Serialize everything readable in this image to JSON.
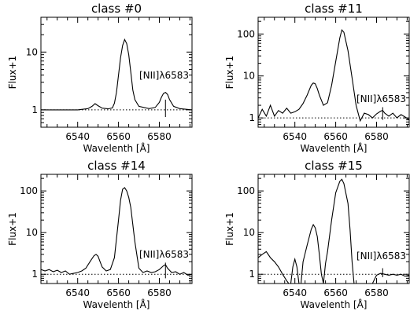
{
  "figure": {
    "panel_count": 4,
    "shared": {
      "xlabel": "Wavelenth [Å]",
      "ylabel": "Flux+1",
      "xlim": [
        6522,
        6596
      ],
      "x_ticks": [
        6540,
        6560,
        6580
      ],
      "y_scale": "log",
      "annotation": "[NII]λ6583",
      "marker_x": 6583,
      "baseline_y": 1,
      "colors": {
        "line": "#000000",
        "baseline": "#000000",
        "background": "#ffffff"
      }
    }
  },
  "chart_data": [
    {
      "type": "line",
      "title": "class #0",
      "xlabel": "Wavelenth [Å]",
      "ylabel": "Flux+1",
      "xlim": [
        6522,
        6596
      ],
      "ylim": [
        0.5,
        40
      ],
      "y_scale": "log",
      "y_ticks": [
        1,
        10
      ],
      "y_tick_labels": [
        "1",
        "10"
      ],
      "x_ticks": [
        6540,
        6560,
        6580
      ],
      "annotation": "[NII]λ6583",
      "marker_x": 6583,
      "baseline_y": 1,
      "marker_range": [
        0.75,
        1.5
      ],
      "annotation_y": 3.5,
      "x": [
        6522,
        6530,
        6540,
        6545,
        6547,
        6548.5,
        6550,
        6552,
        6555,
        6557,
        6558,
        6559,
        6560,
        6561,
        6562,
        6563,
        6564,
        6565,
        6566,
        6567,
        6568,
        6570,
        6575,
        6578,
        6580,
        6581,
        6582,
        6583,
        6584,
        6585,
        6587,
        6590,
        6596
      ],
      "y": [
        1.0,
        1.0,
        1.0,
        1.05,
        1.15,
        1.28,
        1.18,
        1.07,
        1.04,
        1.08,
        1.3,
        2.0,
        4.0,
        8.0,
        13.0,
        16.5,
        14.0,
        9.0,
        4.5,
        2.2,
        1.5,
        1.15,
        1.05,
        1.1,
        1.35,
        1.65,
        1.92,
        2.0,
        1.85,
        1.5,
        1.15,
        1.05,
        1.0
      ]
    },
    {
      "type": "line",
      "title": "class #11",
      "xlabel": "Wavelenth [Å]",
      "ylabel": "Flux+1",
      "xlim": [
        6522,
        6596
      ],
      "ylim": [
        0.6,
        250
      ],
      "y_scale": "log",
      "y_ticks": [
        1,
        10,
        100
      ],
      "y_tick_labels": [
        "1",
        "10",
        "100"
      ],
      "x_ticks": [
        6540,
        6560,
        6580
      ],
      "annotation": "[NII]λ6583",
      "marker_x": 6583,
      "baseline_y": 1,
      "marker_range": [
        0.9,
        1.8
      ],
      "annotation_y": 2.4,
      "x": [
        6522,
        6524,
        6526,
        6528,
        6530,
        6532,
        6534,
        6536,
        6538,
        6540,
        6542,
        6544,
        6546,
        6548,
        6549,
        6550,
        6551,
        6552,
        6554,
        6556,
        6558,
        6560,
        6562,
        6563,
        6564,
        6566,
        6568,
        6570,
        6572,
        6574,
        6576,
        6578,
        6580,
        6582,
        6583,
        6584,
        6586,
        6588,
        6590,
        6592,
        6594,
        6596
      ],
      "y": [
        1.0,
        1.6,
        1.1,
        2.0,
        1.1,
        1.5,
        1.3,
        1.7,
        1.3,
        1.4,
        1.6,
        2.2,
        3.5,
        6.0,
        6.8,
        6.5,
        5.0,
        3.5,
        2.0,
        2.3,
        6.0,
        22.0,
        80.0,
        125.0,
        110.0,
        40.0,
        9.0,
        2.0,
        0.85,
        1.3,
        1.2,
        1.0,
        1.25,
        1.45,
        1.5,
        1.3,
        1.1,
        1.3,
        1.0,
        1.2,
        1.05,
        0.9
      ]
    },
    {
      "type": "line",
      "title": "class #14",
      "xlabel": "Wavelenth [Å]",
      "ylabel": "Flux+1",
      "xlim": [
        6522,
        6596
      ],
      "ylim": [
        0.6,
        250
      ],
      "y_scale": "log",
      "y_ticks": [
        1,
        10,
        100
      ],
      "y_tick_labels": [
        "1",
        "10",
        "100"
      ],
      "x_ticks": [
        6540,
        6560,
        6580
      ],
      "annotation": "[NII]λ6583",
      "marker_x": 6583,
      "baseline_y": 1,
      "marker_range": [
        0.8,
        1.9
      ],
      "annotation_y": 2.5,
      "x": [
        6522,
        6524,
        6526,
        6528,
        6530,
        6532,
        6534,
        6536,
        6538,
        6540,
        6542,
        6544,
        6546,
        6548,
        6549,
        6550,
        6551,
        6552,
        6554,
        6556,
        6558,
        6560,
        6561,
        6562,
        6563,
        6564,
        6565,
        6566,
        6568,
        6570,
        6572,
        6574,
        6576,
        6578,
        6580,
        6582,
        6583,
        6584,
        6586,
        6588,
        6590,
        6592,
        6594,
        6596
      ],
      "y": [
        1.3,
        1.2,
        1.3,
        1.15,
        1.25,
        1.1,
        1.2,
        1.0,
        1.05,
        1.1,
        1.2,
        1.4,
        2.0,
        2.8,
        3.0,
        2.7,
        2.0,
        1.5,
        1.2,
        1.3,
        2.5,
        20.0,
        60.0,
        110.0,
        120.0,
        100.0,
        70.0,
        40.0,
        6.0,
        1.4,
        1.1,
        1.2,
        1.1,
        1.15,
        1.3,
        1.6,
        1.7,
        1.4,
        1.1,
        1.15,
        1.0,
        1.1,
        0.95,
        1.0
      ]
    },
    {
      "type": "line",
      "title": "class #15",
      "xlabel": "Wavelenth [Å]",
      "ylabel": "Flux+1",
      "xlim": [
        6522,
        6596
      ],
      "ylim": [
        0.6,
        250
      ],
      "y_scale": "log",
      "y_ticks": [
        1,
        10,
        100
      ],
      "y_tick_labels": [
        "1",
        "10",
        "100"
      ],
      "x_ticks": [
        6540,
        6560,
        6580
      ],
      "annotation": "[NII]λ6583",
      "marker_x": 6583,
      "baseline_y": 1,
      "marker_range": [
        0.85,
        1.4
      ],
      "annotation_y": 2.3,
      "x": [
        6522,
        6524,
        6526,
        6528,
        6530,
        6532,
        6534,
        6536,
        6537,
        6538,
        6539,
        6540,
        6541,
        6542,
        6543,
        6544,
        6546,
        6548,
        6549,
        6550,
        6551,
        6552,
        6553,
        6554,
        6555,
        6556,
        6558,
        6560,
        6562,
        6563,
        6564,
        6566,
        6567,
        6568,
        6569,
        6570,
        6575,
        6578,
        6580,
        6582,
        6584,
        6586,
        6588,
        6590,
        6592,
        6594,
        6596
      ],
      "y": [
        2.5,
        3.0,
        3.5,
        2.5,
        2.0,
        1.5,
        1.0,
        0.7,
        0.6,
        0.6,
        1.5,
        2.3,
        1.5,
        0.6,
        0.6,
        2.0,
        5.0,
        12.0,
        15.5,
        13.0,
        8.0,
        3.0,
        1.0,
        0.6,
        1.8,
        3.5,
        20.0,
        90.0,
        170.0,
        190.0,
        150.0,
        50.0,
        12.0,
        2.0,
        0.6,
        0.6,
        0.6,
        0.6,
        0.95,
        1.05,
        1.0,
        0.95,
        1.0,
        0.95,
        1.0,
        0.9,
        0.95
      ]
    }
  ]
}
